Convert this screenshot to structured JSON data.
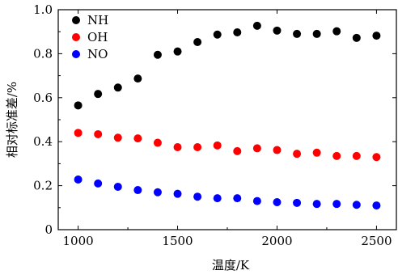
{
  "chart_data": {
    "type": "scatter",
    "xlabel": "温度/K",
    "ylabel": "相对标准差/%",
    "xlim": [
      900,
      2600
    ],
    "ylim": [
      0,
      1.0
    ],
    "xticks": [
      1000,
      1500,
      2000,
      2500
    ],
    "yticks": [
      0,
      0.2,
      0.4,
      0.6,
      0.8,
      1.0
    ],
    "xtick_labels": [
      "1000",
      "1500",
      "2000",
      "2500"
    ],
    "ytick_labels": [
      "0",
      "0.2",
      "0.4",
      "0.6",
      "0.8",
      "1.0"
    ],
    "grid": false,
    "legend_position": "top-left",
    "x": [
      1000,
      1100,
      1200,
      1300,
      1400,
      1500,
      1600,
      1700,
      1800,
      1900,
      2000,
      2100,
      2200,
      2300,
      2400,
      2500
    ],
    "series": [
      {
        "name": "NH",
        "color": "#000000",
        "values": [
          0.565,
          0.617,
          0.646,
          0.687,
          0.795,
          0.81,
          0.853,
          0.887,
          0.897,
          0.927,
          0.905,
          0.89,
          0.89,
          0.902,
          0.872,
          0.882
        ]
      },
      {
        "name": "OH",
        "color": "#ff0000",
        "values": [
          0.44,
          0.434,
          0.418,
          0.415,
          0.395,
          0.375,
          0.375,
          0.383,
          0.357,
          0.37,
          0.362,
          0.345,
          0.35,
          0.335,
          0.335,
          0.33
        ]
      },
      {
        "name": "NO",
        "color": "#0000ff",
        "values": [
          0.228,
          0.21,
          0.195,
          0.18,
          0.17,
          0.163,
          0.15,
          0.143,
          0.143,
          0.13,
          0.125,
          0.122,
          0.117,
          0.117,
          0.113,
          0.11
        ]
      }
    ]
  }
}
